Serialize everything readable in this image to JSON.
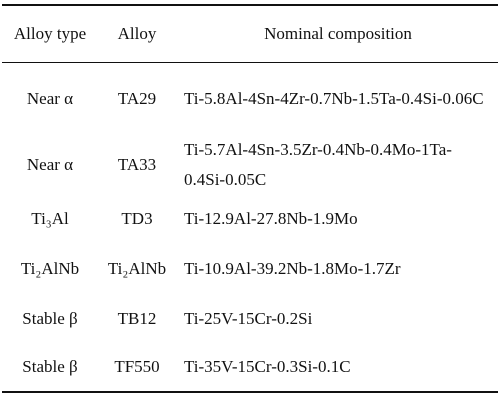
{
  "table": {
    "header": [
      "Alloy type",
      "Alloy",
      "Nominal composition"
    ],
    "rows": [
      [
        "Near α",
        "TA29",
        "Ti-5.8Al-4Sn-4Zr-0.7Nb-1.5Ta-0.4Si-0.06C"
      ],
      [
        "Near α",
        "TA33",
        "Ti-5.7Al-4Sn-3.5Zr-0.4Nb-0.4Mo-1Ta-0.4Si-0.05C"
      ],
      [
        "Ti₃Al",
        "TD3",
        "Ti-12.9Al-27.8Nb-1.9Mo"
      ],
      [
        "Ti₂AlNb",
        "Ti₂AlNb",
        "Ti-10.9Al-39.2Nb-1.8Mo-1.7Zr"
      ],
      [
        "Stable β",
        "TB12",
        "Ti-25V-15Cr-0.2Si"
      ],
      [
        "Stable β",
        "TF550",
        "Ti-35V-15Cr-0.3Si-0.1C"
      ]
    ]
  }
}
